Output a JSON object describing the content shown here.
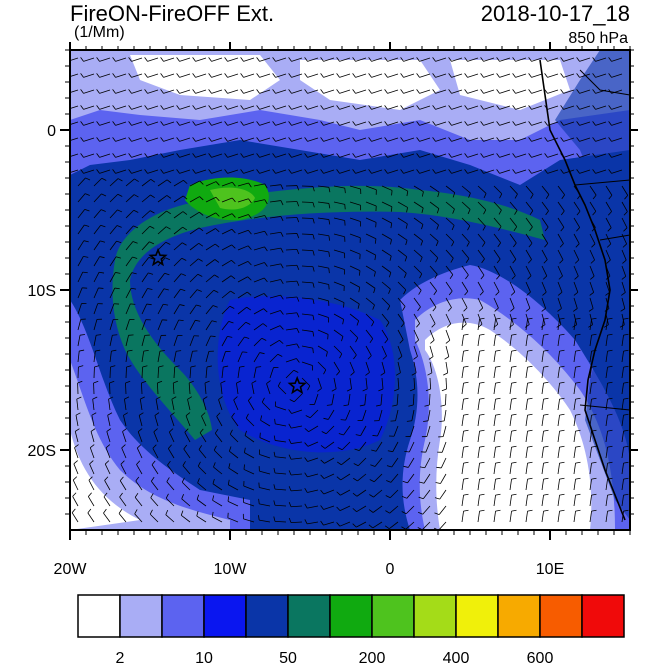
{
  "header": {
    "title": "FireON-FireOFF Ext.",
    "date": "2018-10-17_18",
    "units": "(1/Mm)",
    "level": "850 hPa"
  },
  "axes": {
    "x_ticks": [
      {
        "value": -20,
        "label": "20W"
      },
      {
        "value": -10,
        "label": "10W"
      },
      {
        "value": 0,
        "label": "0"
      },
      {
        "value": 10,
        "label": "10E"
      }
    ],
    "y_ticks": [
      {
        "value": 0,
        "label": "0"
      },
      {
        "value": -10,
        "label": "10S"
      },
      {
        "value": -20,
        "label": "20S"
      }
    ],
    "lon_range": [
      -20,
      15
    ],
    "lat_range": [
      -25,
      5
    ]
  },
  "colorbar": {
    "colors": [
      "#ffffff",
      "#a9adf5",
      "#5c63f0",
      "#0a16f0",
      "#0a35a8",
      "#0a7660",
      "#10aa10",
      "#4ec31e",
      "#a4dc18",
      "#f0f00a",
      "#f7aa00",
      "#f75c00",
      "#f00a0a"
    ],
    "labels": [
      {
        "index": 1,
        "label": "2"
      },
      {
        "index": 3,
        "label": "10"
      },
      {
        "index": 5,
        "label": "50"
      },
      {
        "index": 7,
        "label": "200"
      },
      {
        "index": 9,
        "label": "400"
      },
      {
        "index": 11,
        "label": "600"
      }
    ]
  },
  "markers": [
    {
      "name": "star-west",
      "lon": -14.5,
      "lat": -8
    },
    {
      "name": "star-south",
      "lon": -5.8,
      "lat": -16
    }
  ]
}
